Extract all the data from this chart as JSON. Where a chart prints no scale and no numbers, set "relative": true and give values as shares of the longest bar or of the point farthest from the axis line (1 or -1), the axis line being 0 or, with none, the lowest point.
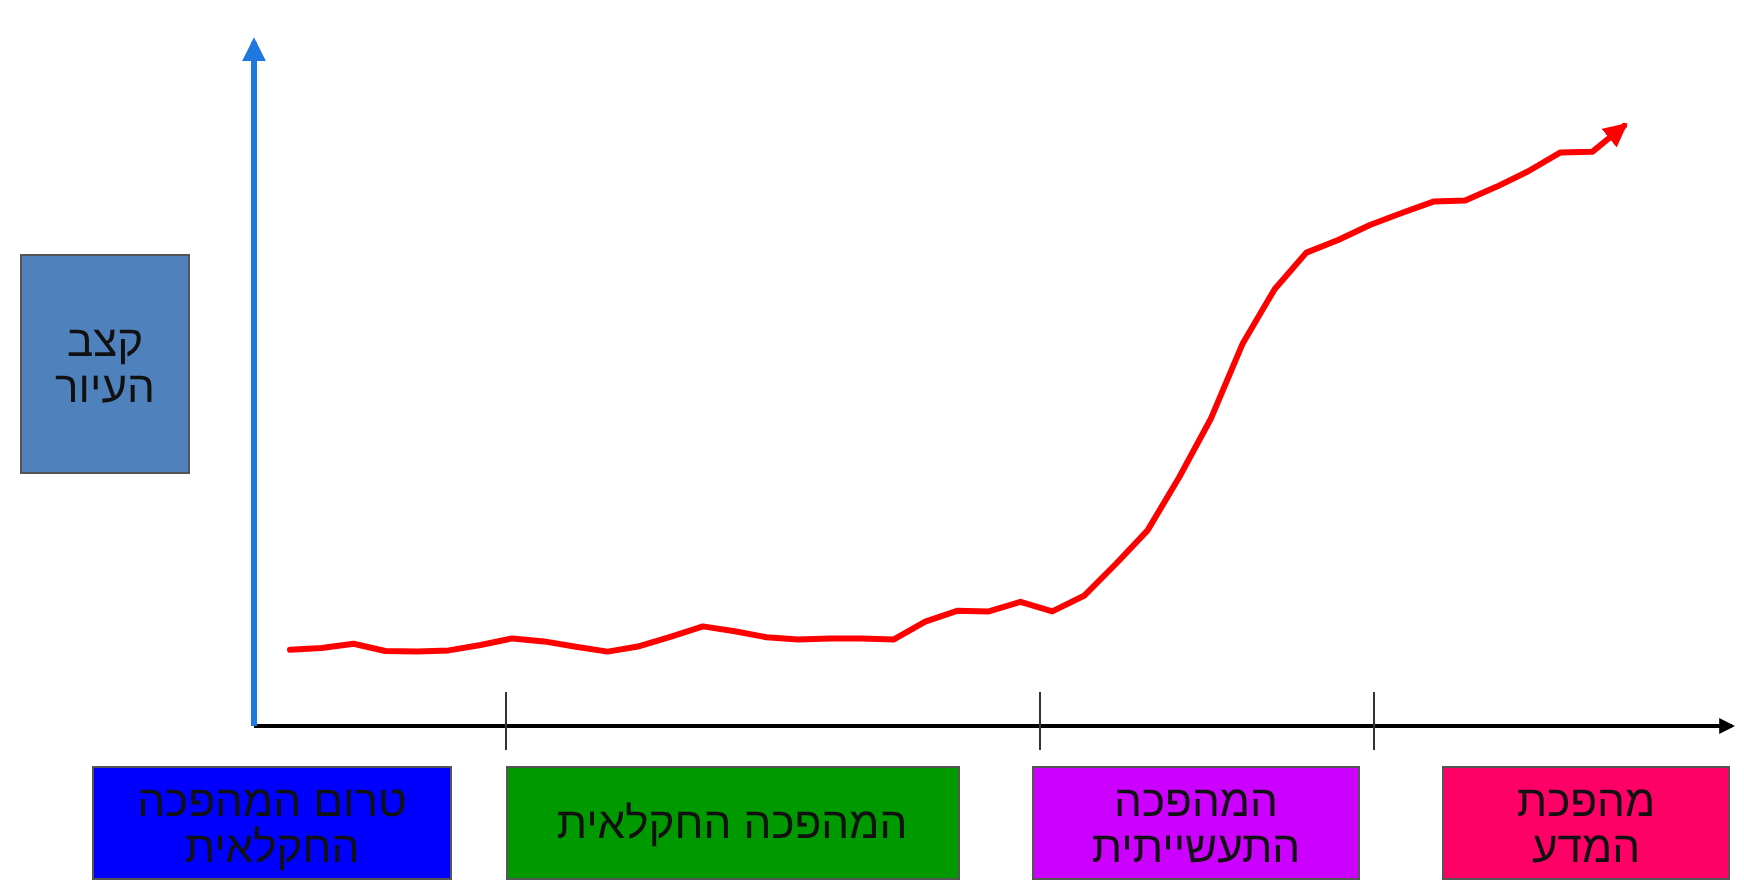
{
  "chart_data": {
    "type": "line",
    "relative": true,
    "ylabel": "קצב העיור",
    "categories": [
      null,
      null,
      null,
      null,
      null,
      null,
      null,
      null,
      null,
      null,
      null,
      null,
      null,
      null,
      null,
      null,
      null,
      null,
      null,
      null,
      null,
      null,
      null,
      null,
      null,
      null,
      null,
      null,
      null,
      null,
      null,
      null,
      null,
      null,
      null,
      null,
      null,
      null,
      null,
      null,
      null,
      null,
      null
    ],
    "series": [
      {
        "color": "#ff0000",
        "values": [
          0.127,
          0.13,
          0.137,
          0.125,
          0.124,
          0.126,
          0.135,
          0.146,
          0.141,
          0.132,
          0.124,
          0.133,
          0.149,
          0.166,
          0.158,
          0.148,
          0.144,
          0.146,
          0.146,
          0.144,
          0.174,
          0.192,
          0.191,
          0.207,
          0.191,
          0.217,
          0.27,
          0.326,
          0.415,
          0.513,
          0.638,
          0.728,
          0.789,
          0.81,
          0.835,
          0.855,
          0.874,
          0.876,
          0.899,
          0.925,
          0.956,
          0.957,
          1
        ]
      }
    ],
    "annotations": [
      "טרום המהפכה החקלאית",
      "המהפכה החקלאית",
      "המהפכה התעשייתית",
      "מהפכת המדע"
    ]
  }
}
